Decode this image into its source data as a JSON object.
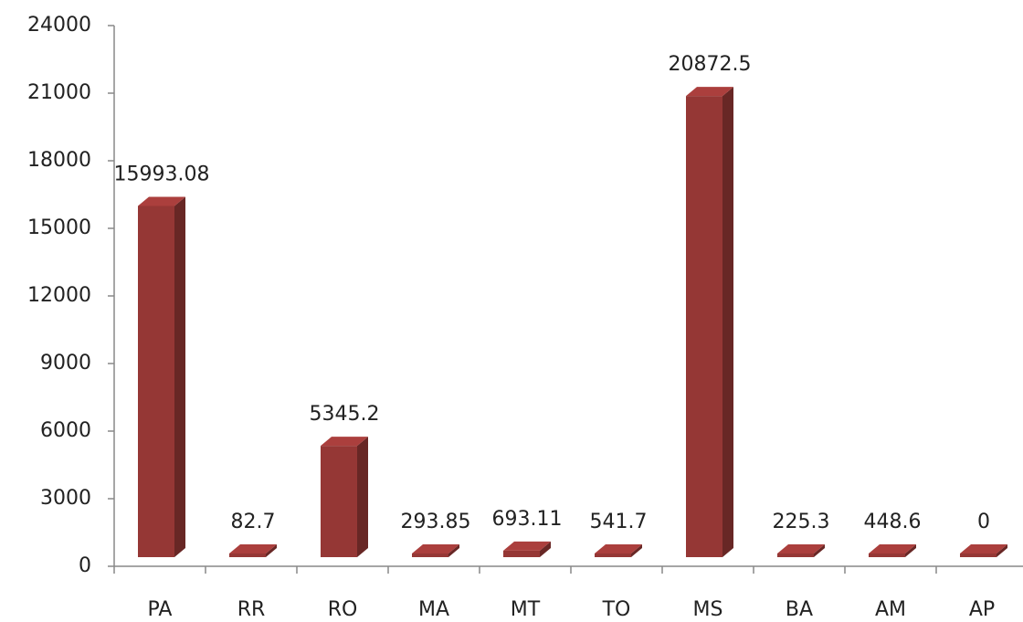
{
  "chart_data": {
    "type": "bar3d",
    "categories": [
      "PA",
      "RR",
      "RO",
      "MA",
      "MT",
      "TO",
      "MS",
      "BA",
      "AM",
      "AP"
    ],
    "values": [
      15993.08,
      82.7,
      5345.2,
      293.85,
      693.11,
      541.7,
      20872.5,
      225.3,
      448.6,
      0
    ],
    "color": "#953735",
    "ylim": [
      0,
      24000
    ],
    "yticks": [
      0,
      3000,
      6000,
      9000,
      12000,
      15000,
      18000,
      21000,
      24000
    ]
  }
}
